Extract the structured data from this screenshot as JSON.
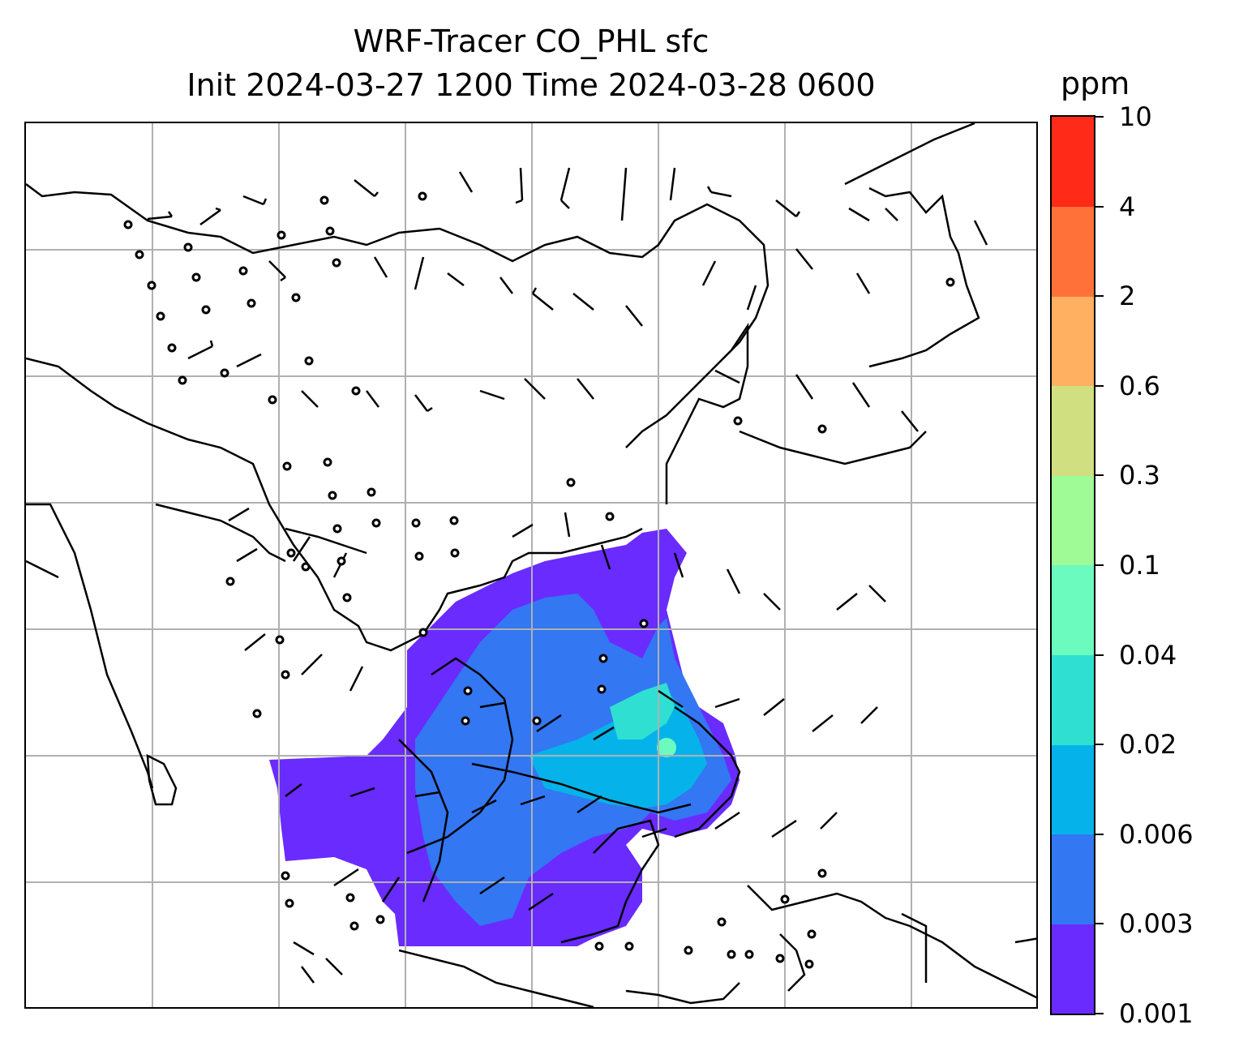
{
  "title": {
    "line1": "WRF-Tracer CO_PHL sfc",
    "line2": "Init 2024-03-27 1200 Time 2024-03-28 0600"
  },
  "colorbar": {
    "units": "ppm",
    "ticks": [
      "0.001",
      "0.003",
      "0.006",
      "0.02",
      "0.04",
      "0.1",
      "0.3",
      "0.6",
      "2",
      "4",
      "10"
    ],
    "colors": [
      "#6a2bff",
      "#3377f2",
      "#05b3ea",
      "#2fe0d2",
      "#6cfbbf",
      "#9efb96",
      "#d0e080",
      "#ffb060",
      "#ff7139",
      "#ff2a17"
    ]
  },
  "map": {
    "gridlines": true,
    "wind_barbs": "surface wind barbs and calm circles",
    "contour_field": "CO_PHL tracer",
    "coastlines": "black"
  }
}
